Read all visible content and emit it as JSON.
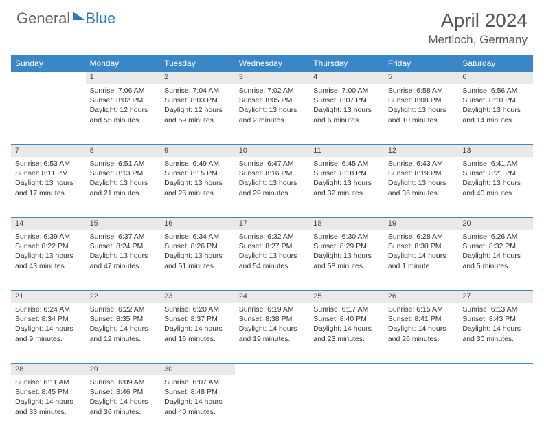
{
  "logo": {
    "general": "General",
    "blue": "Blue"
  },
  "header": {
    "month": "April 2024",
    "location": "Mertloch, Germany"
  },
  "colors": {
    "header_bg": "#3a87c8",
    "daynum_bg": "#e9e9e9"
  },
  "weekdays": [
    "Sunday",
    "Monday",
    "Tuesday",
    "Wednesday",
    "Thursday",
    "Friday",
    "Saturday"
  ],
  "weeks": [
    {
      "days": [
        {
          "n": "",
          "rise": "",
          "set": "",
          "day1": "",
          "day2": ""
        },
        {
          "n": "1",
          "rise": "Sunrise: 7:06 AM",
          "set": "Sunset: 8:02 PM",
          "day1": "Daylight: 12 hours",
          "day2": "and 55 minutes."
        },
        {
          "n": "2",
          "rise": "Sunrise: 7:04 AM",
          "set": "Sunset: 8:03 PM",
          "day1": "Daylight: 12 hours",
          "day2": "and 59 minutes."
        },
        {
          "n": "3",
          "rise": "Sunrise: 7:02 AM",
          "set": "Sunset: 8:05 PM",
          "day1": "Daylight: 13 hours",
          "day2": "and 2 minutes."
        },
        {
          "n": "4",
          "rise": "Sunrise: 7:00 AM",
          "set": "Sunset: 8:07 PM",
          "day1": "Daylight: 13 hours",
          "day2": "and 6 minutes."
        },
        {
          "n": "5",
          "rise": "Sunrise: 6:58 AM",
          "set": "Sunset: 8:08 PM",
          "day1": "Daylight: 13 hours",
          "day2": "and 10 minutes."
        },
        {
          "n": "6",
          "rise": "Sunrise: 6:56 AM",
          "set": "Sunset: 8:10 PM",
          "day1": "Daylight: 13 hours",
          "day2": "and 14 minutes."
        }
      ]
    },
    {
      "days": [
        {
          "n": "7",
          "rise": "Sunrise: 6:53 AM",
          "set": "Sunset: 8:11 PM",
          "day1": "Daylight: 13 hours",
          "day2": "and 17 minutes."
        },
        {
          "n": "8",
          "rise": "Sunrise: 6:51 AM",
          "set": "Sunset: 8:13 PM",
          "day1": "Daylight: 13 hours",
          "day2": "and 21 minutes."
        },
        {
          "n": "9",
          "rise": "Sunrise: 6:49 AM",
          "set": "Sunset: 8:15 PM",
          "day1": "Daylight: 13 hours",
          "day2": "and 25 minutes."
        },
        {
          "n": "10",
          "rise": "Sunrise: 6:47 AM",
          "set": "Sunset: 8:16 PM",
          "day1": "Daylight: 13 hours",
          "day2": "and 29 minutes."
        },
        {
          "n": "11",
          "rise": "Sunrise: 6:45 AM",
          "set": "Sunset: 8:18 PM",
          "day1": "Daylight: 13 hours",
          "day2": "and 32 minutes."
        },
        {
          "n": "12",
          "rise": "Sunrise: 6:43 AM",
          "set": "Sunset: 8:19 PM",
          "day1": "Daylight: 13 hours",
          "day2": "and 36 minutes."
        },
        {
          "n": "13",
          "rise": "Sunrise: 6:41 AM",
          "set": "Sunset: 8:21 PM",
          "day1": "Daylight: 13 hours",
          "day2": "and 40 minutes."
        }
      ]
    },
    {
      "days": [
        {
          "n": "14",
          "rise": "Sunrise: 6:39 AM",
          "set": "Sunset: 8:22 PM",
          "day1": "Daylight: 13 hours",
          "day2": "and 43 minutes."
        },
        {
          "n": "15",
          "rise": "Sunrise: 6:37 AM",
          "set": "Sunset: 8:24 PM",
          "day1": "Daylight: 13 hours",
          "day2": "and 47 minutes."
        },
        {
          "n": "16",
          "rise": "Sunrise: 6:34 AM",
          "set": "Sunset: 8:26 PM",
          "day1": "Daylight: 13 hours",
          "day2": "and 51 minutes."
        },
        {
          "n": "17",
          "rise": "Sunrise: 6:32 AM",
          "set": "Sunset: 8:27 PM",
          "day1": "Daylight: 13 hours",
          "day2": "and 54 minutes."
        },
        {
          "n": "18",
          "rise": "Sunrise: 6:30 AM",
          "set": "Sunset: 8:29 PM",
          "day1": "Daylight: 13 hours",
          "day2": "and 58 minutes."
        },
        {
          "n": "19",
          "rise": "Sunrise: 6:28 AM",
          "set": "Sunset: 8:30 PM",
          "day1": "Daylight: 14 hours",
          "day2": "and 1 minute."
        },
        {
          "n": "20",
          "rise": "Sunrise: 6:26 AM",
          "set": "Sunset: 8:32 PM",
          "day1": "Daylight: 14 hours",
          "day2": "and 5 minutes."
        }
      ]
    },
    {
      "days": [
        {
          "n": "21",
          "rise": "Sunrise: 6:24 AM",
          "set": "Sunset: 8:34 PM",
          "day1": "Daylight: 14 hours",
          "day2": "and 9 minutes."
        },
        {
          "n": "22",
          "rise": "Sunrise: 6:22 AM",
          "set": "Sunset: 8:35 PM",
          "day1": "Daylight: 14 hours",
          "day2": "and 12 minutes."
        },
        {
          "n": "23",
          "rise": "Sunrise: 6:20 AM",
          "set": "Sunset: 8:37 PM",
          "day1": "Daylight: 14 hours",
          "day2": "and 16 minutes."
        },
        {
          "n": "24",
          "rise": "Sunrise: 6:19 AM",
          "set": "Sunset: 8:38 PM",
          "day1": "Daylight: 14 hours",
          "day2": "and 19 minutes."
        },
        {
          "n": "25",
          "rise": "Sunrise: 6:17 AM",
          "set": "Sunset: 8:40 PM",
          "day1": "Daylight: 14 hours",
          "day2": "and 23 minutes."
        },
        {
          "n": "26",
          "rise": "Sunrise: 6:15 AM",
          "set": "Sunset: 8:41 PM",
          "day1": "Daylight: 14 hours",
          "day2": "and 26 minutes."
        },
        {
          "n": "27",
          "rise": "Sunrise: 6:13 AM",
          "set": "Sunset: 8:43 PM",
          "day1": "Daylight: 14 hours",
          "day2": "and 30 minutes."
        }
      ]
    },
    {
      "days": [
        {
          "n": "28",
          "rise": "Sunrise: 6:11 AM",
          "set": "Sunset: 8:45 PM",
          "day1": "Daylight: 14 hours",
          "day2": "and 33 minutes."
        },
        {
          "n": "29",
          "rise": "Sunrise: 6:09 AM",
          "set": "Sunset: 8:46 PM",
          "day1": "Daylight: 14 hours",
          "day2": "and 36 minutes."
        },
        {
          "n": "30",
          "rise": "Sunrise: 6:07 AM",
          "set": "Sunset: 8:48 PM",
          "day1": "Daylight: 14 hours",
          "day2": "and 40 minutes."
        },
        {
          "n": "",
          "rise": "",
          "set": "",
          "day1": "",
          "day2": ""
        },
        {
          "n": "",
          "rise": "",
          "set": "",
          "day1": "",
          "day2": ""
        },
        {
          "n": "",
          "rise": "",
          "set": "",
          "day1": "",
          "day2": ""
        },
        {
          "n": "",
          "rise": "",
          "set": "",
          "day1": "",
          "day2": ""
        }
      ]
    }
  ]
}
